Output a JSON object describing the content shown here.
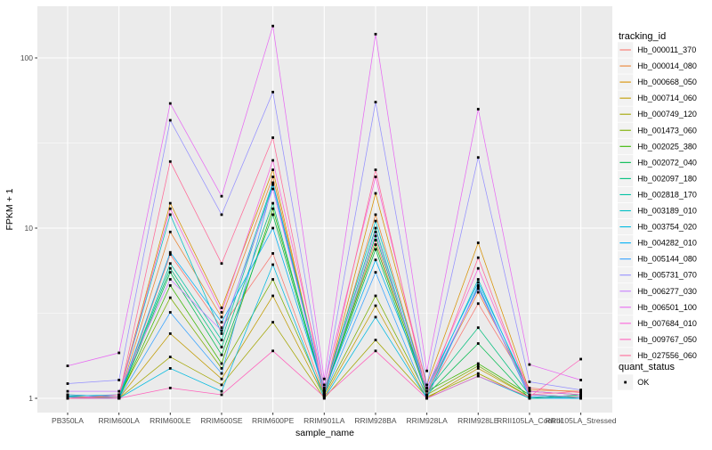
{
  "figure": {
    "background": "#FFFFFF",
    "panel_background": "#EBEBEB",
    "grid_color": "#FFFFFF",
    "tick_color": "#333333",
    "tick_label_color": "#4D4D4D",
    "title_color": "#000000",
    "legend_key_background": "#F2F2F2",
    "point_color": "#000000"
  },
  "chart_data": {
    "type": "line",
    "title": "",
    "xlabel": "sample_name",
    "ylabel": "FPKM + 1",
    "y_scale": "log10",
    "y_ticks": [
      1,
      10,
      100
    ],
    "y_tick_labels": [
      "1",
      "10",
      "100"
    ],
    "y_minor_ticks": [
      3.1623,
      31.623
    ],
    "ylim": [
      0.82,
      200
    ],
    "grid": true,
    "legend_position": "right",
    "legend_title": "tracking_id",
    "quant_legend_title": "quant_status",
    "quant_legend_items": [
      {
        "label": "OK",
        "marker": "square",
        "color": "#000000"
      }
    ],
    "categories": [
      "PB350LA",
      "RRIM600LA",
      "RRIM600LE",
      "RRIM600SE",
      "RRIM600PE",
      "RRIM901LA",
      "RRIM928BA",
      "RRIM928LA",
      "RRIM928LE",
      "RRII105LA_Control",
      "RRII105LA_Stressed"
    ],
    "series": [
      {
        "name": "Hb_000011_370",
        "color": "#F8766D",
        "values": [
          1.03,
          1.0,
          7.0,
          2.6,
          7.1,
          1.05,
          8.5,
          1.05,
          3.6,
          1.15,
          1.08
        ]
      },
      {
        "name": "Hb_000014_080",
        "color": "#EA8331",
        "values": [
          1.05,
          1.02,
          9.5,
          3.0,
          20,
          1.08,
          12,
          1.1,
          4.2,
          1.12,
          1.1
        ]
      },
      {
        "name": "Hb_000668_050",
        "color": "#D89000",
        "values": [
          1.0,
          1.05,
          14,
          3.4,
          22,
          1.05,
          16,
          1.2,
          8.2,
          1.1,
          1.05
        ]
      },
      {
        "name": "Hb_000714_060",
        "color": "#C09B00",
        "values": [
          1.0,
          1.0,
          2.4,
          1.3,
          4.0,
          1.02,
          3.5,
          1.0,
          1.5,
          1.02,
          1.0
        ]
      },
      {
        "name": "Hb_000749_120",
        "color": "#A3A500",
        "values": [
          1.0,
          1.0,
          1.75,
          1.2,
          2.8,
          1.0,
          2.2,
          1.02,
          1.4,
          1.0,
          1.02
        ]
      },
      {
        "name": "Hb_001473_060",
        "color": "#7CAE00",
        "values": [
          1.02,
          1.02,
          3.9,
          1.5,
          5.0,
          1.05,
          4.0,
          1.05,
          1.55,
          1.02,
          1.0
        ]
      },
      {
        "name": "Hb_002025_380",
        "color": "#39B600",
        "values": [
          1.0,
          1.0,
          4.6,
          1.6,
          13,
          1.1,
          8.0,
          1.1,
          1.6,
          1.05,
          1.02
        ]
      },
      {
        "name": "Hb_002072_040",
        "color": "#00BB4E",
        "values": [
          1.02,
          1.0,
          5.5,
          1.8,
          12,
          1.08,
          7.5,
          1.05,
          2.1,
          1.0,
          1.05
        ]
      },
      {
        "name": "Hb_002097_180",
        "color": "#00BF7D",
        "values": [
          1.0,
          1.02,
          5.8,
          2.0,
          14,
          1.05,
          9.0,
          1.1,
          2.6,
          1.05,
          1.0
        ]
      },
      {
        "name": "Hb_002818_170",
        "color": "#00C1A3",
        "values": [
          1.0,
          1.0,
          6.2,
          2.2,
          18,
          1.1,
          10,
          1.05,
          4.5,
          1.02,
          1.0
        ]
      },
      {
        "name": "Hb_003189_010",
        "color": "#00BFC4",
        "values": [
          1.03,
          1.05,
          12,
          2.4,
          18.5,
          1.12,
          11,
          1.1,
          5.0,
          1.05,
          1.02
        ]
      },
      {
        "name": "Hb_003754_020",
        "color": "#00BAE0",
        "values": [
          1.0,
          1.0,
          1.5,
          1.1,
          6.1,
          1.0,
          3.0,
          1.0,
          1.35,
          1.0,
          1.0
        ]
      },
      {
        "name": "Hb_004282_010",
        "color": "#00B0F6",
        "values": [
          1.05,
          1.02,
          7.2,
          2.8,
          10,
          1.1,
          6.5,
          1.15,
          4.8,
          1.1,
          1.05
        ]
      },
      {
        "name": "Hb_005144_080",
        "color": "#35A2FF",
        "values": [
          1.02,
          1.0,
          3.2,
          1.4,
          18,
          1.05,
          5.5,
          1.0,
          4.6,
          1.02,
          1.0
        ]
      },
      {
        "name": "Hb_005731_070",
        "color": "#9590FF",
        "values": [
          1.22,
          1.28,
          43,
          12,
          63,
          1.15,
          55,
          1.2,
          26,
          1.25,
          1.12
        ]
      },
      {
        "name": "Hb_006277_030",
        "color": "#C77CFF",
        "values": [
          1.1,
          1.1,
          5.0,
          2.5,
          17,
          1.1,
          9.5,
          1.1,
          4.4,
          1.05,
          1.02
        ]
      },
      {
        "name": "Hb_006501_100",
        "color": "#E76BF3",
        "values": [
          1.55,
          1.85,
          54,
          15.4,
          154,
          1.3,
          138,
          1.45,
          50,
          1.58,
          1.28
        ]
      },
      {
        "name": "Hb_007684_010",
        "color": "#FA62DB",
        "values": [
          1.0,
          1.05,
          13,
          3.2,
          25,
          1.2,
          20,
          1.15,
          5.8,
          1.1,
          1.05
        ]
      },
      {
        "name": "Hb_009767_050",
        "color": "#FF62BC",
        "values": [
          1.0,
          1.0,
          1.15,
          1.05,
          1.9,
          1.02,
          1.9,
          1.0,
          1.35,
          1.02,
          1.7
        ]
      },
      {
        "name": "Hb_027556_060",
        "color": "#FF6A98",
        "values": [
          1.0,
          1.02,
          24.6,
          6.2,
          34,
          1.05,
          22,
          1.05,
          6.7,
          1.05,
          1.1
        ]
      }
    ]
  }
}
